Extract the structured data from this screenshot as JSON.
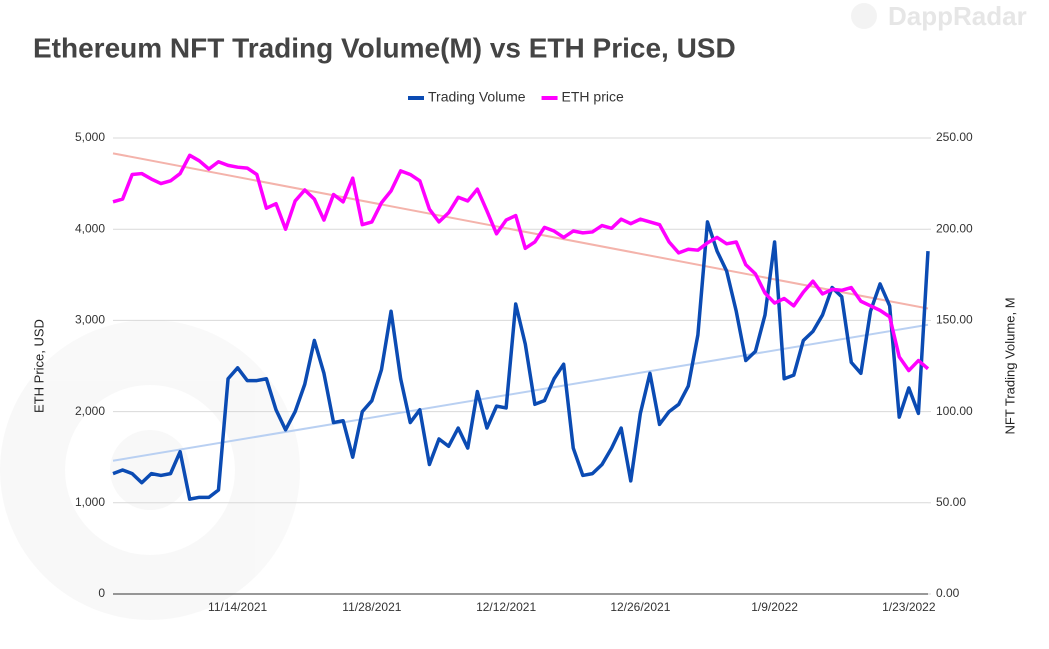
{
  "watermark": "DappRadar",
  "chart_data": {
    "type": "line",
    "title": "Ethereum NFT Trading Volume(M) vs ETH Price, USD",
    "ylabel": "ETH Price, USD",
    "y2label": "NFT Trading Volume, M",
    "categories": [
      null,
      null,
      null,
      null,
      null,
      null,
      null,
      null,
      null,
      null,
      null,
      null,
      null,
      "11/14/2021",
      null,
      null,
      null,
      null,
      null,
      null,
      null,
      null,
      null,
      null,
      null,
      null,
      null,
      "11/28/2021",
      null,
      null,
      null,
      null,
      null,
      null,
      null,
      null,
      null,
      null,
      null,
      null,
      null,
      "12/12/2021",
      null,
      null,
      null,
      null,
      null,
      null,
      null,
      null,
      null,
      null,
      null,
      null,
      null,
      "12/26/2021",
      null,
      null,
      null,
      null,
      null,
      null,
      null,
      null,
      null,
      null,
      null,
      null,
      null,
      "1/9/2022",
      null,
      null,
      null,
      null,
      null,
      null,
      null,
      null,
      null,
      null,
      null,
      null,
      null,
      "1/23/2022",
      null,
      null
    ],
    "series": [
      {
        "name": "Trading Volume",
        "color": "#0b4bb3",
        "axis": "y2",
        "trendline_color": "#b9d0f2",
        "values": [
          66,
          68,
          66,
          61,
          66,
          65,
          66,
          78,
          52,
          53,
          53,
          57,
          118,
          124,
          117,
          117,
          118,
          101,
          90,
          100,
          115,
          139,
          121,
          94,
          95,
          75,
          100,
          106,
          123,
          155,
          118,
          94,
          101,
          71,
          85,
          81,
          91,
          80,
          111,
          91,
          103,
          102,
          159,
          137,
          104,
          106,
          118,
          126,
          80,
          65,
          66,
          71,
          80,
          91,
          62,
          99,
          121,
          93,
          100,
          104,
          114,
          142,
          204,
          188,
          177,
          155,
          128,
          133,
          153,
          193,
          118,
          120,
          139,
          144,
          153,
          168,
          163,
          127,
          121,
          155,
          170,
          158,
          97,
          113,
          99,
          188
        ]
      },
      {
        "name": "ETH price",
        "color": "#ff00ff",
        "trendline_color": "#f4b3ab",
        "values": [
          4300,
          4330,
          4600,
          4610,
          4550,
          4500,
          4530,
          4610,
          4810,
          4750,
          4660,
          4740,
          4700,
          4680,
          4670,
          4600,
          4230,
          4280,
          4000,
          4310,
          4430,
          4330,
          4100,
          4380,
          4300,
          4560,
          4050,
          4080,
          4290,
          4420,
          4640,
          4600,
          4530,
          4220,
          4080,
          4180,
          4350,
          4310,
          4440,
          4200,
          3950,
          4100,
          4150,
          3790,
          3860,
          4020,
          3980,
          3910,
          3980,
          3960,
          3970,
          4040,
          4010,
          4110,
          4060,
          4110,
          4080,
          4050,
          3860,
          3740,
          3780,
          3770,
          3850,
          3910,
          3840,
          3860,
          3610,
          3510,
          3300,
          3190,
          3240,
          3160,
          3310,
          3430,
          3290,
          3340,
          3330,
          3360,
          3210,
          3160,
          3110,
          3040,
          2600,
          2450,
          2560,
          2470
        ]
      }
    ],
    "ylim": [
      0,
      5000
    ],
    "yticks": [
      0,
      {
        "value": 1000,
        "label": "1,000"
      },
      {
        "value": 2000,
        "label": "2,000"
      },
      {
        "value": 3000,
        "label": "3,000"
      },
      {
        "value": 4000,
        "label": "4,000"
      },
      {
        "value": 5000,
        "label": "5,000"
      }
    ],
    "y2lim": [
      0,
      250
    ],
    "y2ticks": [
      {
        "value": 0,
        "label": "0.00"
      },
      {
        "value": 50,
        "label": "50.00"
      },
      {
        "value": 100,
        "label": "100.00"
      },
      {
        "value": 150,
        "label": "150.00"
      },
      {
        "value": 200,
        "label": "200.00"
      },
      {
        "value": 250,
        "label": "250.00"
      }
    ],
    "grid": true,
    "legend": "top"
  }
}
